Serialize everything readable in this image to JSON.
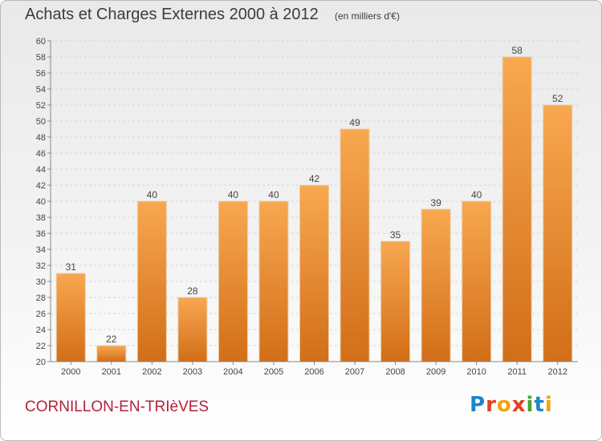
{
  "header": {
    "title": "Achats et Charges Externes 2000 à 2012",
    "subtitle": "(en milliers d'€)"
  },
  "footer": {
    "commune": "CORNILLON-EN-TRIèVES",
    "logo_text": "Proxiti"
  },
  "colors": {
    "bar_light": "#f8a850",
    "bar_dark": "#d26e18",
    "grid": "#d6d6d6",
    "commune": "#b5213a"
  },
  "chart_data": {
    "type": "bar",
    "title": "Achats et Charges Externes 2000 à 2012",
    "subtitle": "(en milliers d'€)",
    "xlabel": "",
    "ylabel": "",
    "categories": [
      "2000",
      "2001",
      "2002",
      "2003",
      "2004",
      "2005",
      "2006",
      "2007",
      "2008",
      "2009",
      "2010",
      "2011",
      "2012"
    ],
    "values": [
      31,
      22,
      40,
      28,
      40,
      40,
      42,
      49,
      35,
      39,
      40,
      58,
      52
    ],
    "ylim": [
      20,
      60
    ],
    "yticks": [
      20,
      22,
      24,
      26,
      28,
      30,
      32,
      34,
      36,
      38,
      40,
      42,
      44,
      46,
      48,
      50,
      52,
      54,
      56,
      58,
      60
    ],
    "grid": true,
    "data_labels": true,
    "legend": "none"
  }
}
